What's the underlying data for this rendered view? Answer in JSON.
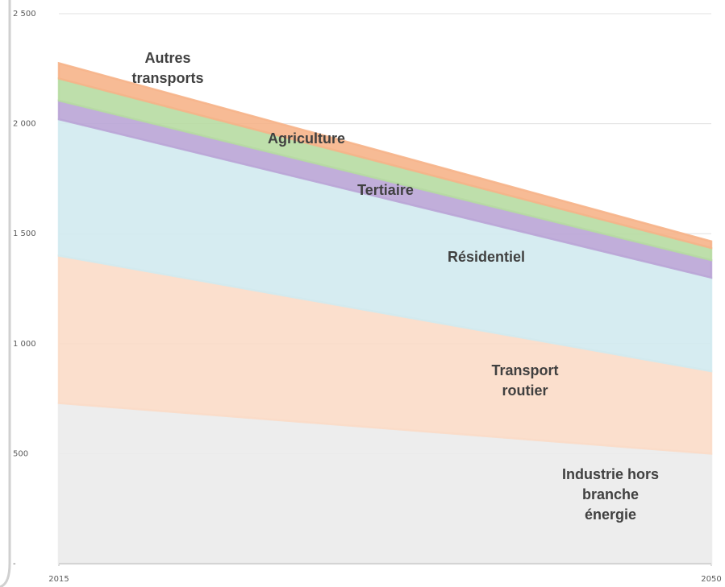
{
  "chart_data": {
    "type": "stacked_area",
    "x": [
      2015,
      2050
    ],
    "xlim": [
      2015,
      2050
    ],
    "xticks": [
      2015,
      2050
    ],
    "ylim": [
      0,
      2500
    ],
    "yticks": [
      {
        "value": 0,
        "label": "-"
      },
      500,
      {
        "value": 1000,
        "label": "1 000"
      },
      {
        "value": 1500,
        "label": "1 500"
      },
      {
        "value": 2000,
        "label": "2 000"
      },
      {
        "value": 2500,
        "label": "2 500"
      }
    ],
    "grid": true,
    "series": [
      {
        "name": "Industrie hors branche énergie",
        "color": "#ebebeb",
        "values": [
          730,
          500
        ]
      },
      {
        "name": "Transport routier",
        "color": "#fbdcc8",
        "values": [
          670,
          375
        ]
      },
      {
        "name": "Résidentiel",
        "color": "#d2eaf0",
        "values": [
          620,
          425
        ]
      },
      {
        "name": "Tertiaire",
        "color": "#baa5d6",
        "values": [
          85,
          80
        ]
      },
      {
        "name": "Agriculture",
        "color": "#b7dba2",
        "values": [
          100,
          55
        ]
      },
      {
        "name": "Autres transports",
        "color": "#f6b489",
        "values": [
          70,
          30
        ]
      }
    ]
  }
}
